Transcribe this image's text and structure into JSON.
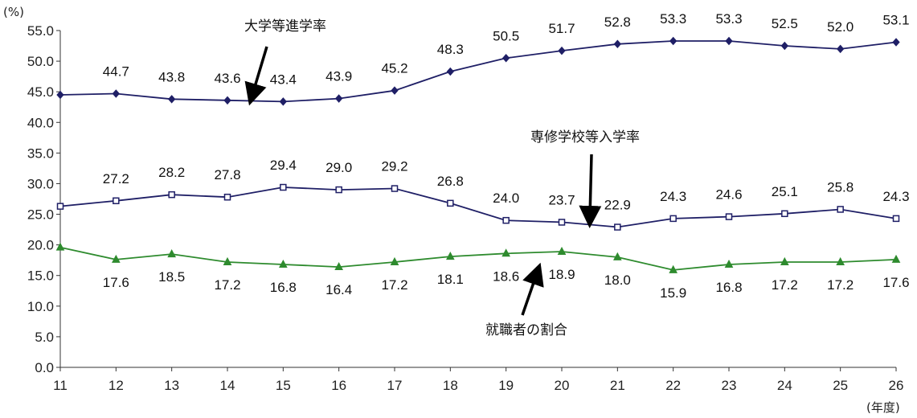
{
  "chart_data": {
    "type": "line",
    "y_unit": "(%)",
    "x_unit": "(年度)",
    "ylim": [
      0,
      55
    ],
    "y_ticks": [
      "0.0",
      "5.0",
      "10.0",
      "15.0",
      "20.0",
      "25.0",
      "30.0",
      "35.0",
      "40.0",
      "45.0",
      "50.0",
      "55.0"
    ],
    "categories": [
      "11",
      "12",
      "13",
      "14",
      "15",
      "16",
      "17",
      "18",
      "19",
      "20",
      "21",
      "22",
      "23",
      "24",
      "25",
      "26"
    ],
    "grid": false,
    "series": [
      {
        "name": "大学等進学率",
        "color": "#1f1f66",
        "marker": "diamond",
        "values": [
          44.5,
          44.7,
          43.8,
          43.6,
          43.4,
          43.9,
          45.2,
          48.3,
          50.5,
          51.7,
          52.8,
          53.3,
          53.3,
          52.5,
          52.0,
          53.1
        ],
        "labels": [
          "",
          "44.7",
          "43.8",
          "43.6",
          "43.4",
          "43.9",
          "45.2",
          "48.3",
          "50.5",
          "51.7",
          "52.8",
          "53.3",
          "53.3",
          "52.5",
          "52.0",
          "53.1"
        ]
      },
      {
        "name": "専修学校等入学率",
        "color": "#1f1f66",
        "marker": "square-open",
        "values": [
          26.3,
          27.2,
          28.2,
          27.8,
          29.4,
          29.0,
          29.2,
          26.8,
          24.0,
          23.7,
          22.9,
          24.3,
          24.6,
          25.1,
          25.8,
          24.3
        ],
        "labels": [
          "",
          "27.2",
          "28.2",
          "27.8",
          "29.4",
          "29.0",
          "29.2",
          "26.8",
          "24.0",
          "23.7",
          "22.9",
          "24.3",
          "24.6",
          "25.1",
          "25.8",
          "24.3"
        ]
      },
      {
        "name": "就職者の割合",
        "color": "#2e8b2e",
        "marker": "triangle",
        "values": [
          19.6,
          17.6,
          18.5,
          17.2,
          16.8,
          16.4,
          17.2,
          18.1,
          18.6,
          18.9,
          18.0,
          15.9,
          16.8,
          17.2,
          17.2,
          17.6
        ],
        "labels": [
          "",
          "17.6",
          "18.5",
          "17.2",
          "16.8",
          "16.4",
          "17.2",
          "18.1",
          "18.6",
          "18.9",
          "18.0",
          "15.9",
          "16.8",
          "17.2",
          "17.2",
          "17.6"
        ]
      }
    ],
    "annotations": [
      {
        "text": "大学等進学率",
        "series": "大学等進学率"
      },
      {
        "text": "専修学校等入学率",
        "series": "専修学校等入学率"
      },
      {
        "text": "就職者の割合",
        "series": "就職者の割合"
      }
    ]
  }
}
